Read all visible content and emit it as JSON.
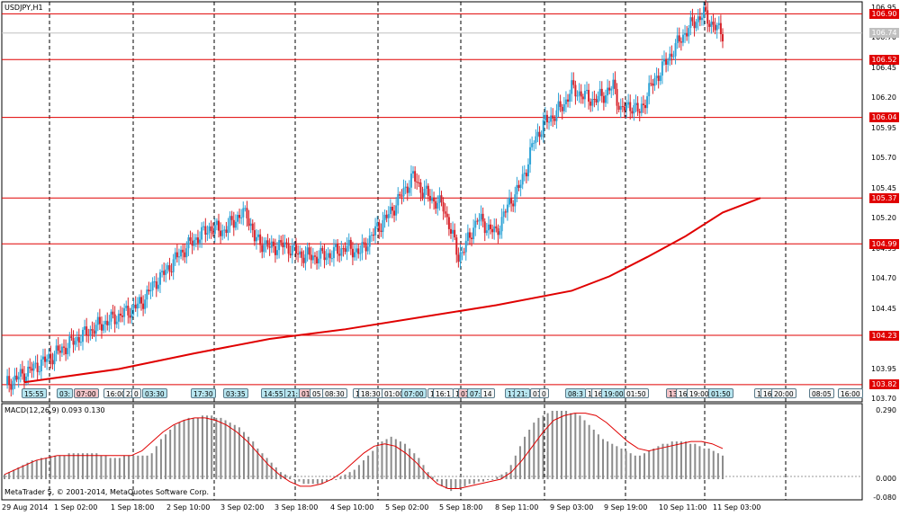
{
  "window": {
    "symbol_title": "USDJPY,H1",
    "copyright": "MetaTrader 5, © 2001-2014, MetaQuotes Software Corp."
  },
  "price_axis": {
    "labels": [
      "106.95",
      "106.70",
      "106.45",
      "106.20",
      "105.95",
      "105.70",
      "105.45",
      "105.20",
      "104.95",
      "104.70",
      "104.45",
      "104.20",
      "103.95",
      "103.70"
    ],
    "current_price": {
      "text": "106.74",
      "value": 106.74,
      "color": "#c0c0c0"
    }
  },
  "horizontal_levels": [
    {
      "text": "106.90",
      "value": 106.9
    },
    {
      "text": "106.52",
      "value": 106.52
    },
    {
      "text": "106.04",
      "value": 106.04
    },
    {
      "text": "105.37",
      "value": 105.37
    },
    {
      "text": "104.99",
      "value": 104.99
    },
    {
      "text": "104.23",
      "value": 104.23
    },
    {
      "text": "103.82",
      "value": 103.82
    }
  ],
  "time_axis": {
    "labels": [
      "29 Aug 2014",
      "1 Sep 02:00",
      "1 Sep 18:00",
      "2 Sep 10:00",
      "3 Sep 02:00",
      "3 Sep 18:00",
      "4 Sep 10:00",
      "5 Sep 02:00",
      "5 Sep 18:00",
      "8 Sep 11:00",
      "9 Sep 03:00",
      "9 Sep 19:00",
      "10 Sep 11:00",
      "11 Sep 03:00"
    ]
  },
  "event_tags": [
    {
      "text": "15:55",
      "type": "b"
    },
    {
      "text": "03:",
      "type": "b"
    },
    {
      "text": "07:00",
      "type": "r"
    },
    {
      "text": "16:00",
      "type": "w"
    },
    {
      "text": "22",
      "type": "w"
    },
    {
      "text": "0",
      "type": "w"
    },
    {
      "text": "03:30",
      "type": "b"
    },
    {
      "text": "17:30",
      "type": "b"
    },
    {
      "text": "03:35",
      "type": "b"
    },
    {
      "text": "14:55",
      "type": "b"
    },
    {
      "text": "21:",
      "type": "b"
    },
    {
      "text": "01:",
      "type": "r"
    },
    {
      "text": "05",
      "type": "w"
    },
    {
      "text": "08:30",
      "type": "w"
    },
    {
      "text": "1",
      "type": "w"
    },
    {
      "text": "18:30",
      "type": "w"
    },
    {
      "text": "01:00",
      "type": "w"
    },
    {
      "text": "07:00",
      "type": "b"
    },
    {
      "text": "1",
      "type": "w"
    },
    {
      "text": "16:1",
      "type": "w"
    },
    {
      "text": "1",
      "type": "w"
    },
    {
      "text": "01:50",
      "type": "r"
    },
    {
      "text": "07:00",
      "type": "b"
    },
    {
      "text": "14",
      "type": "w"
    },
    {
      "text": "17:",
      "type": "b"
    },
    {
      "text": "21:",
      "type": "b"
    },
    {
      "text": "01:",
      "type": "w"
    },
    {
      "text": "0",
      "type": "w"
    },
    {
      "text": "08:3",
      "type": "b"
    },
    {
      "text": "1",
      "type": "w"
    },
    {
      "text": "16",
      "type": "w"
    },
    {
      "text": "19:00",
      "type": "b"
    },
    {
      "text": "01:50",
      "type": "w"
    },
    {
      "text": "13",
      "type": "r"
    },
    {
      "text": "16",
      "type": "w"
    },
    {
      "text": "19:00",
      "type": "w"
    },
    {
      "text": "01:50",
      "type": "b"
    },
    {
      "text": "1",
      "type": "w"
    },
    {
      "text": "16",
      "type": "w"
    },
    {
      "text": "20:00",
      "type": "w"
    },
    {
      "text": "08:05",
      "type": "w"
    },
    {
      "text": "16:00",
      "type": "w"
    }
  ],
  "macd": {
    "title": "MACD(12,26,9) 0.093 0.130",
    "axis_labels": [
      "0.290",
      "0.000",
      "-0.080"
    ]
  },
  "colors": {
    "bull_candle": "#2ea3d6",
    "bear_candle": "#d8232a",
    "level_line": "#e00000",
    "moving_average": "#e00000",
    "macd_hist": "#8c8c8c",
    "macd_signal": "#e00000",
    "grid_vertical": "#000000"
  },
  "chart_data": [
    {
      "type": "candlestick",
      "pane": "main",
      "title": "USDJPY,H1",
      "ylim": [
        103.7,
        106.97
      ],
      "x_ticks": [
        "29 Aug 2014",
        "1 Sep 02:00",
        "1 Sep 18:00",
        "2 Sep 10:00",
        "3 Sep 02:00",
        "3 Sep 18:00",
        "4 Sep 10:00",
        "5 Sep 02:00",
        "5 Sep 18:00",
        "8 Sep 11:00",
        "9 Sep 03:00",
        "9 Sep 19:00",
        "10 Sep 11:00",
        "11 Sep 03:00"
      ],
      "close_path": [
        [
          0,
          103.82
        ],
        [
          12,
          103.93
        ],
        [
          24,
          104.05
        ],
        [
          36,
          104.18
        ],
        [
          48,
          104.3
        ],
        [
          56,
          104.36
        ],
        [
          64,
          104.42
        ],
        [
          72,
          104.5
        ],
        [
          80,
          104.68
        ],
        [
          86,
          104.78
        ],
        [
          92,
          104.9
        ],
        [
          100,
          105.02
        ],
        [
          108,
          105.12
        ],
        [
          116,
          105.1
        ],
        [
          122,
          105.2
        ],
        [
          128,
          105.25
        ],
        [
          132,
          105.03
        ],
        [
          140,
          104.96
        ],
        [
          148,
          104.98
        ],
        [
          156,
          104.9
        ],
        [
          164,
          104.88
        ],
        [
          172,
          104.9
        ],
        [
          180,
          104.96
        ],
        [
          188,
          104.92
        ],
        [
          196,
          105.1
        ],
        [
          204,
          105.25
        ],
        [
          210,
          105.4
        ],
        [
          216,
          105.55
        ],
        [
          220,
          105.45
        ],
        [
          226,
          105.36
        ],
        [
          232,
          105.3
        ],
        [
          236,
          105.1
        ],
        [
          240,
          104.88
        ],
        [
          244,
          104.98
        ],
        [
          250,
          105.2
        ],
        [
          256,
          105.12
        ],
        [
          260,
          105.08
        ],
        [
          266,
          105.3
        ],
        [
          272,
          105.45
        ],
        [
          276,
          105.62
        ],
        [
          280,
          105.85
        ],
        [
          286,
          106.0
        ],
        [
          290,
          106.05
        ],
        [
          296,
          106.15
        ],
        [
          300,
          106.28
        ],
        [
          306,
          106.22
        ],
        [
          312,
          106.18
        ],
        [
          318,
          106.24
        ],
        [
          322,
          106.3
        ],
        [
          326,
          106.1
        ],
        [
          332,
          106.14
        ],
        [
          336,
          106.08
        ],
        [
          342,
          106.3
        ],
        [
          348,
          106.45
        ],
        [
          354,
          106.6
        ],
        [
          358,
          106.7
        ],
        [
          362,
          106.78
        ],
        [
          366,
          106.85
        ],
        [
          370,
          106.9
        ],
        [
          374,
          106.82
        ],
        [
          378,
          106.76
        ],
        [
          380,
          106.74
        ]
      ],
      "moving_average": [
        [
          10,
          103.84
        ],
        [
          60,
          103.95
        ],
        [
          100,
          104.08
        ],
        [
          140,
          104.2
        ],
        [
          180,
          104.28
        ],
        [
          220,
          104.38
        ],
        [
          260,
          104.48
        ],
        [
          300,
          104.6
        ],
        [
          320,
          104.72
        ],
        [
          340,
          104.88
        ],
        [
          360,
          105.05
        ],
        [
          380,
          105.25
        ],
        [
          400,
          105.37
        ]
      ],
      "levels": [
        106.9,
        106.52,
        106.04,
        105.37,
        104.99,
        104.23,
        103.82
      ]
    },
    {
      "type": "bar",
      "pane": "indicator",
      "title": "MACD(12,26,9) 0.093 0.130",
      "ylim": [
        -0.08,
        0.29
      ],
      "histogram": [
        0.02,
        0.03,
        0.04,
        0.05,
        0.06,
        0.07,
        0.08,
        0.08,
        0.09,
        0.09,
        0.1,
        0.1,
        0.1,
        0.1,
        0.11,
        0.11,
        0.11,
        0.11,
        0.11,
        0.11,
        0.11,
        0.1,
        0.1,
        0.09,
        0.09,
        0.09,
        0.1,
        0.1,
        0.1,
        0.1,
        0.1,
        0.1,
        0.11,
        0.14,
        0.17,
        0.19,
        0.21,
        0.23,
        0.24,
        0.25,
        0.26,
        0.26,
        0.26,
        0.27,
        0.27,
        0.27,
        0.26,
        0.26,
        0.25,
        0.24,
        0.23,
        0.22,
        0.2,
        0.18,
        0.16,
        0.13,
        0.11,
        0.09,
        0.07,
        0.05,
        0.03,
        0.02,
        0.01,
        0.0,
        -0.01,
        -0.02,
        -0.02,
        -0.02,
        -0.02,
        -0.02,
        -0.01,
        0.0,
        0.0,
        0.01,
        0.02,
        0.03,
        0.04,
        0.06,
        0.08,
        0.1,
        0.12,
        0.14,
        0.16,
        0.17,
        0.18,
        0.17,
        0.16,
        0.15,
        0.13,
        0.11,
        0.09,
        0.06,
        0.03,
        0.01,
        -0.01,
        -0.03,
        -0.04,
        -0.05,
        -0.04,
        -0.04,
        -0.03,
        -0.02,
        -0.02,
        -0.01,
        -0.01,
        0.0,
        0.0,
        0.01,
        0.02,
        0.03,
        0.06,
        0.1,
        0.14,
        0.18,
        0.21,
        0.24,
        0.26,
        0.27,
        0.28,
        0.29,
        0.29,
        0.29,
        0.29,
        0.28,
        0.28,
        0.27,
        0.25,
        0.23,
        0.21,
        0.19,
        0.17,
        0.16,
        0.15,
        0.14,
        0.13,
        0.12,
        0.11,
        0.1,
        0.1,
        0.11,
        0.12,
        0.13,
        0.14,
        0.15,
        0.15,
        0.16,
        0.16,
        0.16,
        0.16,
        0.15,
        0.15,
        0.14,
        0.13,
        0.13,
        0.12,
        0.11,
        0.1
      ],
      "signal": [
        0.02,
        0.04,
        0.06,
        0.08,
        0.09,
        0.1,
        0.1,
        0.1,
        0.1,
        0.1,
        0.1,
        0.1,
        0.1,
        0.12,
        0.16,
        0.2,
        0.23,
        0.25,
        0.26,
        0.26,
        0.25,
        0.23,
        0.2,
        0.16,
        0.11,
        0.06,
        0.02,
        -0.01,
        -0.03,
        -0.03,
        -0.02,
        0.0,
        0.03,
        0.07,
        0.11,
        0.14,
        0.15,
        0.14,
        0.11,
        0.07,
        0.02,
        -0.02,
        -0.04,
        -0.04,
        -0.03,
        -0.02,
        -0.01,
        0.0,
        0.03,
        0.08,
        0.14,
        0.2,
        0.25,
        0.27,
        0.28,
        0.28,
        0.27,
        0.24,
        0.2,
        0.16,
        0.13,
        0.12,
        0.13,
        0.14,
        0.15,
        0.16,
        0.16,
        0.15,
        0.13
      ]
    }
  ]
}
